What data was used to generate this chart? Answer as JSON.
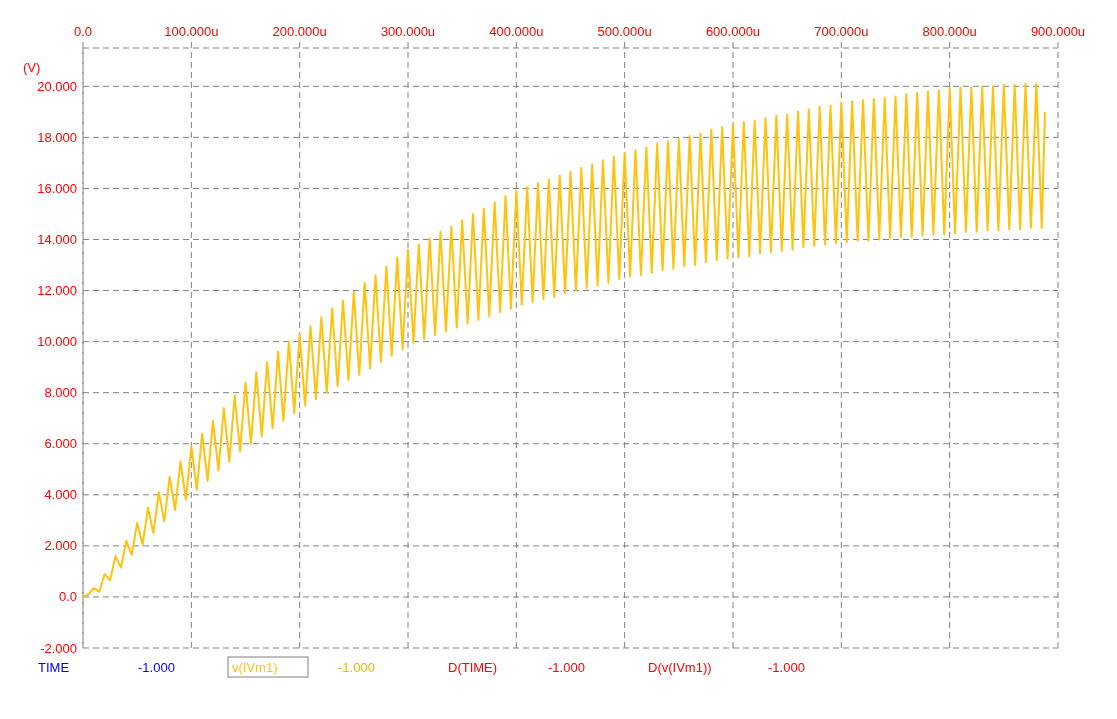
{
  "chart_data": {
    "type": "line",
    "ylabel": "(V)",
    "xlim": [
      0,
      900
    ],
    "xticks": [
      {
        "value": 0,
        "label": "0.0"
      },
      {
        "value": 100,
        "label": "100.000u"
      },
      {
        "value": 200,
        "label": "200.000u"
      },
      {
        "value": 300,
        "label": "300.000u"
      },
      {
        "value": 400,
        "label": "400.000u"
      },
      {
        "value": 500,
        "label": "500.000u"
      },
      {
        "value": 600,
        "label": "600.000u"
      },
      {
        "value": 700,
        "label": "700.000u"
      },
      {
        "value": 800,
        "label": "800.000u"
      },
      {
        "value": 900,
        "label": "900.000u"
      }
    ],
    "ylim": [
      -2,
      21.5
    ],
    "yticks": [
      {
        "value": -2,
        "label": "-2.000"
      },
      {
        "value": 0,
        "label": "0.0"
      },
      {
        "value": 2,
        "label": "2.000"
      },
      {
        "value": 4,
        "label": "4.000"
      },
      {
        "value": 6,
        "label": "6.000"
      },
      {
        "value": 8,
        "label": "8.000"
      },
      {
        "value": 10,
        "label": "10.000"
      },
      {
        "value": 12,
        "label": "12.000"
      },
      {
        "value": 14,
        "label": "14.000"
      },
      {
        "value": 16,
        "label": "16.000"
      },
      {
        "value": 18,
        "label": "18.000"
      },
      {
        "value": 20,
        "label": "20.000"
      }
    ],
    "grid": true,
    "legend": "bottom",
    "annotations": [
      "TIME",
      "-1.000",
      "-1.000",
      "D(TIME)",
      "-1.000",
      "D(v(IVm1))",
      "-1.000"
    ],
    "series": [
      {
        "name": "v(IVm1)",
        "color": "#ffc20e",
        "x": [
          0,
          5,
          10,
          15,
          20,
          25,
          30,
          35,
          40,
          45,
          50,
          55,
          60,
          65,
          70,
          75,
          80,
          85,
          90,
          95,
          100,
          105,
          110,
          115,
          120,
          125,
          130,
          135,
          140,
          145,
          150,
          155,
          160,
          165,
          170,
          175,
          180,
          185,
          190,
          195,
          200,
          205,
          210,
          215,
          220,
          225,
          230,
          235,
          240,
          245,
          250,
          255,
          260,
          265,
          270,
          275,
          280,
          285,
          290,
          295,
          300,
          305,
          310,
          315,
          320,
          325,
          330,
          335,
          340,
          345,
          350,
          355,
          360,
          365,
          370,
          375,
          380,
          385,
          390,
          395,
          400,
          405,
          410,
          415,
          420,
          425,
          430,
          435,
          440,
          445,
          450,
          455,
          460,
          465,
          470,
          475,
          480,
          485,
          490,
          495,
          500,
          505,
          510,
          515,
          520,
          525,
          530,
          535,
          540,
          545,
          550,
          555,
          560,
          565,
          570,
          575,
          580,
          585,
          590,
          595,
          600,
          605,
          610,
          615,
          620,
          625,
          630,
          635,
          640,
          645,
          650,
          655,
          660,
          665,
          670,
          675,
          680,
          685,
          690,
          695,
          700,
          705,
          710,
          715,
          720,
          725,
          730,
          735,
          740,
          745,
          750,
          755,
          760,
          765,
          770,
          775,
          780,
          785,
          790,
          795,
          800,
          805,
          810,
          815,
          820,
          825,
          830,
          835,
          840,
          845,
          850,
          855,
          860,
          865,
          870,
          875,
          880,
          885,
          888
        ],
        "values": [
          0,
          0.1,
          0.35,
          0.2,
          0.9,
          0.65,
          1.6,
          1.15,
          2.2,
          1.65,
          2.9,
          2.05,
          3.5,
          2.5,
          4.1,
          2.95,
          4.7,
          3.4,
          5.3,
          3.8,
          5.9,
          4.2,
          6.4,
          4.55,
          6.9,
          4.95,
          7.4,
          5.3,
          7.9,
          5.7,
          8.4,
          6.0,
          8.8,
          6.3,
          9.2,
          6.6,
          9.6,
          6.9,
          10.0,
          7.2,
          10.3,
          7.5,
          10.6,
          7.75,
          10.95,
          8.0,
          11.3,
          8.25,
          11.6,
          8.5,
          11.95,
          8.7,
          12.3,
          8.95,
          12.6,
          9.2,
          12.95,
          9.45,
          13.3,
          9.7,
          13.6,
          9.95,
          13.8,
          10.1,
          14.05,
          10.25,
          14.3,
          10.4,
          14.5,
          10.55,
          14.75,
          10.7,
          15.0,
          10.85,
          15.2,
          11.0,
          15.45,
          11.15,
          15.7,
          11.3,
          15.9,
          11.45,
          16.05,
          11.55,
          16.2,
          11.65,
          16.35,
          11.75,
          16.5,
          11.9,
          16.65,
          12.0,
          16.8,
          12.1,
          16.95,
          12.2,
          17.1,
          12.3,
          17.25,
          12.45,
          17.4,
          12.55,
          17.5,
          12.6,
          17.6,
          12.7,
          17.75,
          12.8,
          17.85,
          12.85,
          17.95,
          12.95,
          18.05,
          13.0,
          18.15,
          13.1,
          18.3,
          13.2,
          18.4,
          13.25,
          18.5,
          13.3,
          18.6,
          13.35,
          18.65,
          13.45,
          18.75,
          13.5,
          18.85,
          13.55,
          18.9,
          13.6,
          19.0,
          13.7,
          19.1,
          13.75,
          19.2,
          13.8,
          19.25,
          13.85,
          19.35,
          13.9,
          19.4,
          13.95,
          19.45,
          13.95,
          19.5,
          14.0,
          19.55,
          14.05,
          19.6,
          14.1,
          19.7,
          14.1,
          19.75,
          14.15,
          19.8,
          14.2,
          19.85,
          14.2,
          19.9,
          14.25,
          19.95,
          14.3,
          19.95,
          14.3,
          20.0,
          14.35,
          20.0,
          14.35,
          20.05,
          14.4,
          20.05,
          14.4,
          20.1,
          14.45,
          20.1,
          14.45,
          19.0
        ]
      }
    ]
  }
}
